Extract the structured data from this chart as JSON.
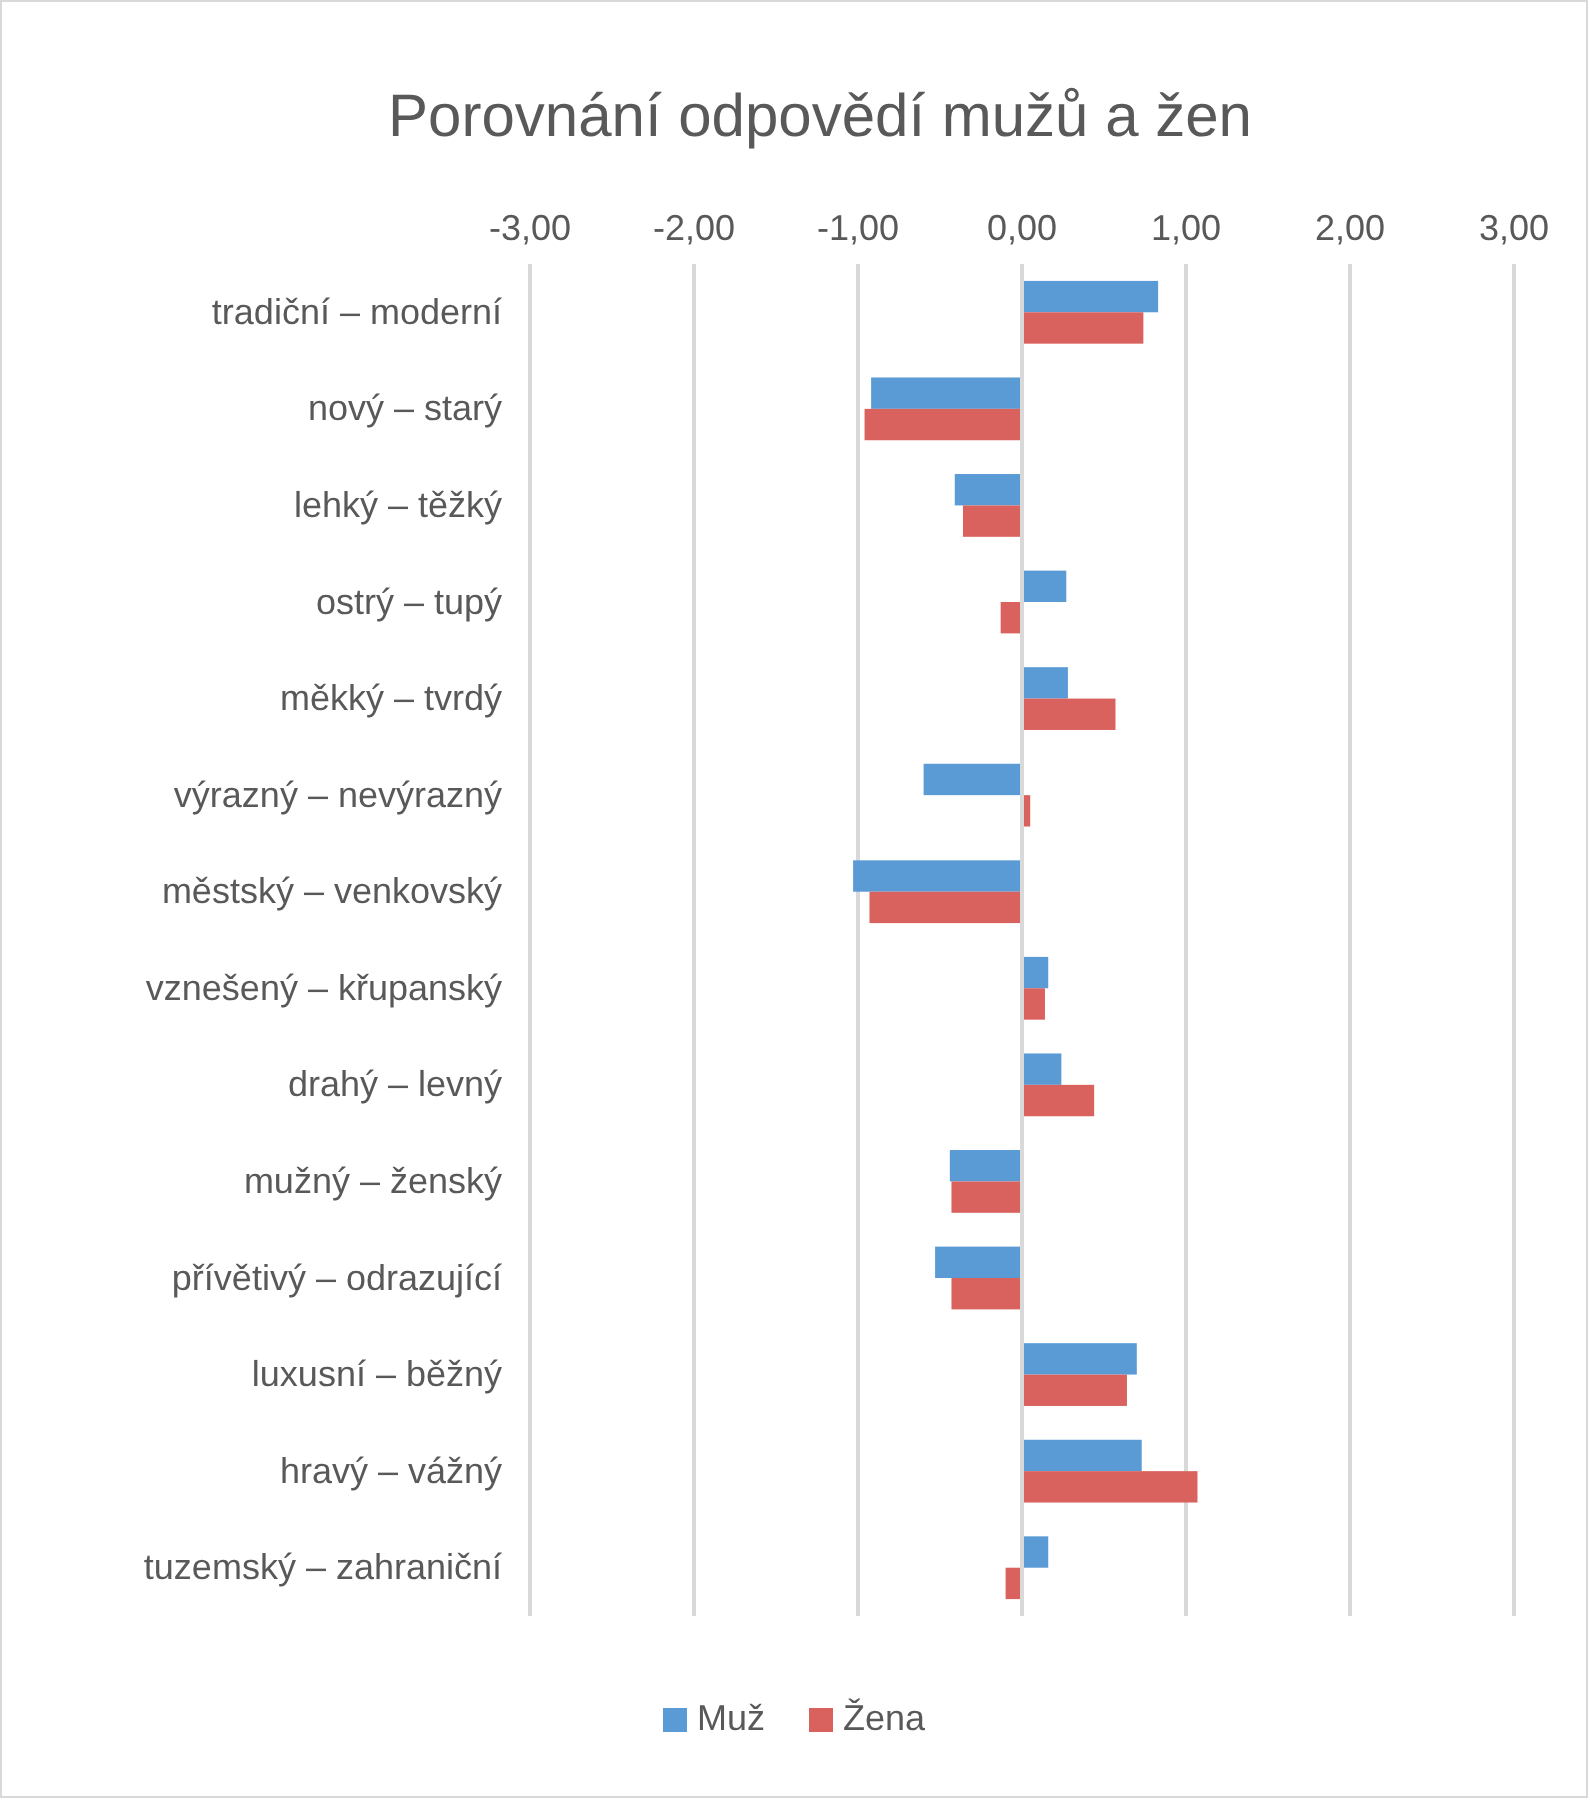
{
  "chart_data": {
    "type": "bar",
    "orientation": "horizontal",
    "title": "Porovnání odpovědí mužů a žen",
    "categories": [
      "tradiční – moderní",
      "nový – starý",
      "lehký – těžký",
      "ostrý – tupý",
      "měkký – tvrdý",
      "výrazný – nevýrazný",
      "městský – venkovský",
      "vznešený – křupanský",
      "drahý – levný",
      "mužný – ženský",
      "přívětivý – odrazující",
      "luxusní – běžný",
      "hravý – vážný",
      "tuzemský – zahraniční"
    ],
    "series": [
      {
        "name": "Muž",
        "color": "#5b9bd5",
        "values": [
          0.83,
          -0.92,
          -0.41,
          0.27,
          0.28,
          -0.6,
          -1.03,
          0.16,
          0.24,
          -0.44,
          -0.53,
          0.7,
          0.73,
          0.16
        ]
      },
      {
        "name": "Žena",
        "color": "#d9625e",
        "values": [
          0.74,
          -0.96,
          -0.36,
          -0.13,
          0.57,
          0.05,
          -0.93,
          0.14,
          0.44,
          -0.43,
          -0.43,
          0.64,
          1.07,
          -0.1
        ]
      }
    ],
    "xlim": [
      -3,
      3
    ],
    "xticks": [
      {
        "value": -3,
        "label": "-3,00"
      },
      {
        "value": -2,
        "label": "-2,00"
      },
      {
        "value": -1,
        "label": "-1,00"
      },
      {
        "value": 0,
        "label": "0,00"
      },
      {
        "value": 1,
        "label": "1,00"
      },
      {
        "value": 2,
        "label": "2,00"
      },
      {
        "value": 3,
        "label": "3,00"
      }
    ],
    "grid": "x",
    "legend": "bottom"
  }
}
